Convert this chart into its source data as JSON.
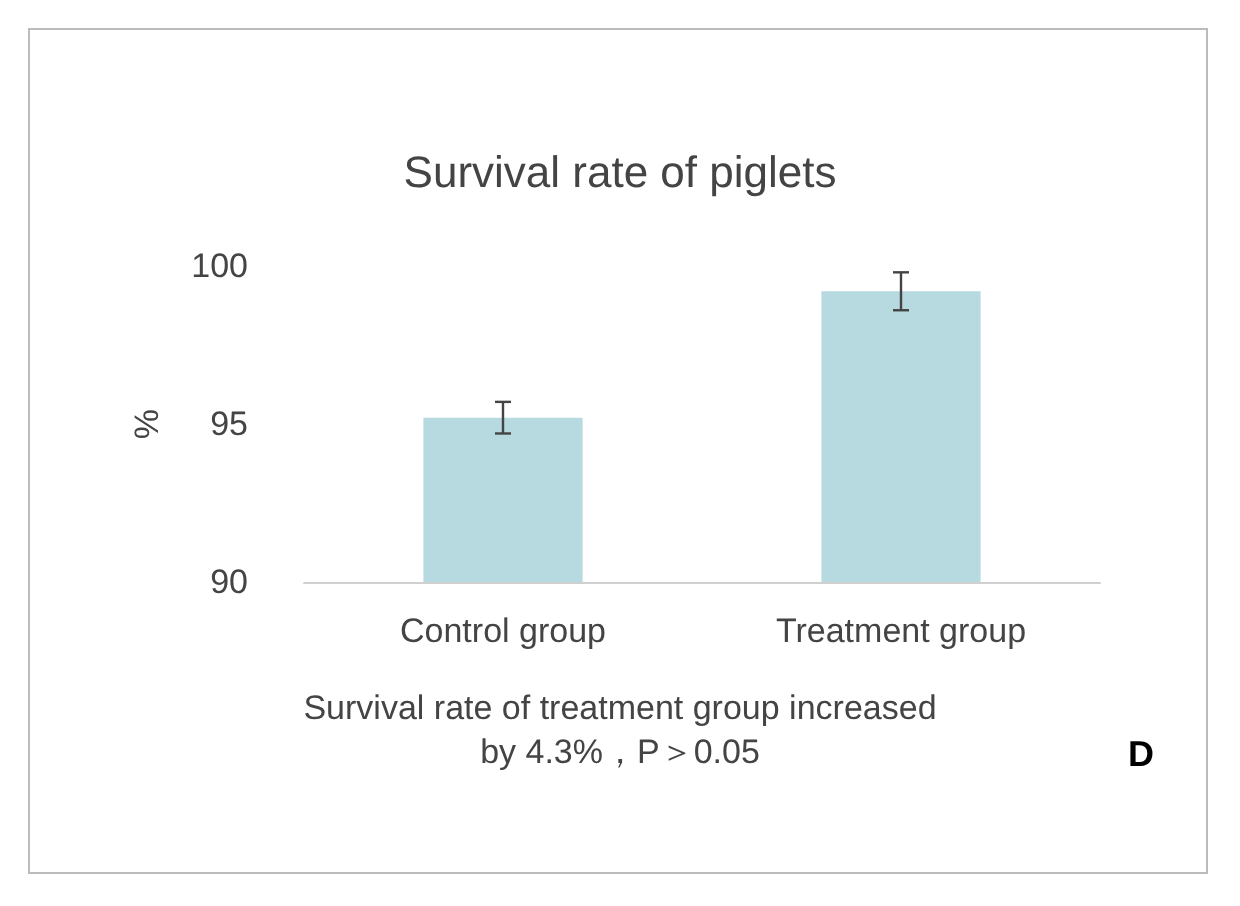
{
  "chart_data": {
    "type": "bar",
    "title": "Survival rate of piglets",
    "ylabel": "%",
    "categories": [
      "Control group",
      "Treatment group"
    ],
    "values": [
      95.2,
      99.2
    ],
    "errors": [
      0.5,
      0.6
    ],
    "color": "#b6dadf",
    "ylim": [
      90,
      100
    ],
    "yticks": [
      90,
      95,
      100
    ],
    "grid": false,
    "annotations": [
      "Survival rate of treatment group increased\nby 4.3%，P＞0.05",
      "D"
    ]
  }
}
